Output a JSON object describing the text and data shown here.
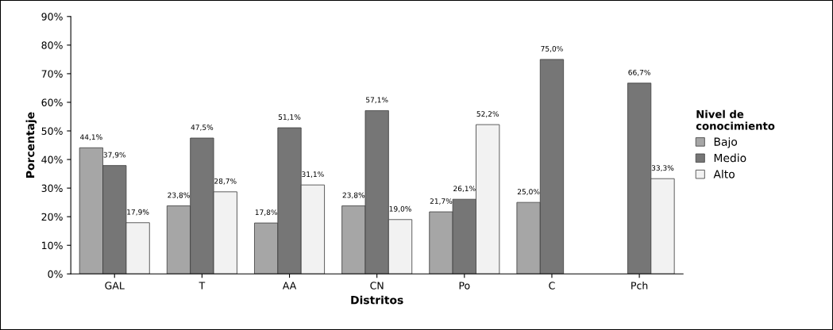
{
  "chart_data": {
    "type": "bar",
    "xlabel": "Distritos",
    "ylabel": "Porcentaje",
    "legend_title": "Nivel de conocimiento",
    "categories": [
      "GAL",
      "T",
      "AA",
      "CN",
      "Po",
      "C",
      "Pch"
    ],
    "series": [
      {
        "name": "Bajo",
        "color": "#a6a6a6",
        "values": [
          44.1,
          23.8,
          17.8,
          23.8,
          21.7,
          25.0,
          null
        ],
        "value_labels": [
          "44,1%",
          "23,8%",
          "17,8%",
          "23,8%",
          "21,7%",
          "25,0%",
          null
        ]
      },
      {
        "name": "Medio",
        "color": "#767676",
        "values": [
          37.9,
          47.5,
          51.1,
          57.1,
          26.1,
          75.0,
          66.7
        ],
        "value_labels": [
          "37,9%",
          "47,5%",
          "51,1%",
          "57,1%",
          "26,1%",
          "75,0%",
          "66,7%"
        ]
      },
      {
        "name": "Alto",
        "color": "#f2f2f2",
        "values": [
          17.9,
          28.7,
          31.1,
          19.0,
          52.2,
          null,
          33.3
        ],
        "value_labels": [
          "17,9%",
          "28,7%",
          "31,1%",
          "19,0%",
          "52,2%",
          null,
          "33,3%"
        ]
      }
    ],
    "ylim": [
      0,
      90
    ],
    "yticks": [
      {
        "value": 0,
        "label": "0%"
      },
      {
        "value": 10,
        "label": "10%"
      },
      {
        "value": 20,
        "label": "20%"
      },
      {
        "value": 30,
        "label": "30%"
      },
      {
        "value": 40,
        "label": "40%"
      },
      {
        "value": 50,
        "label": "50%"
      },
      {
        "value": 60,
        "label": "60%"
      },
      {
        "value": 70,
        "label": "70%"
      },
      {
        "value": 80,
        "label": "80%"
      },
      {
        "value": 90,
        "label": "90%"
      }
    ],
    "legend": "right",
    "grid": false
  }
}
